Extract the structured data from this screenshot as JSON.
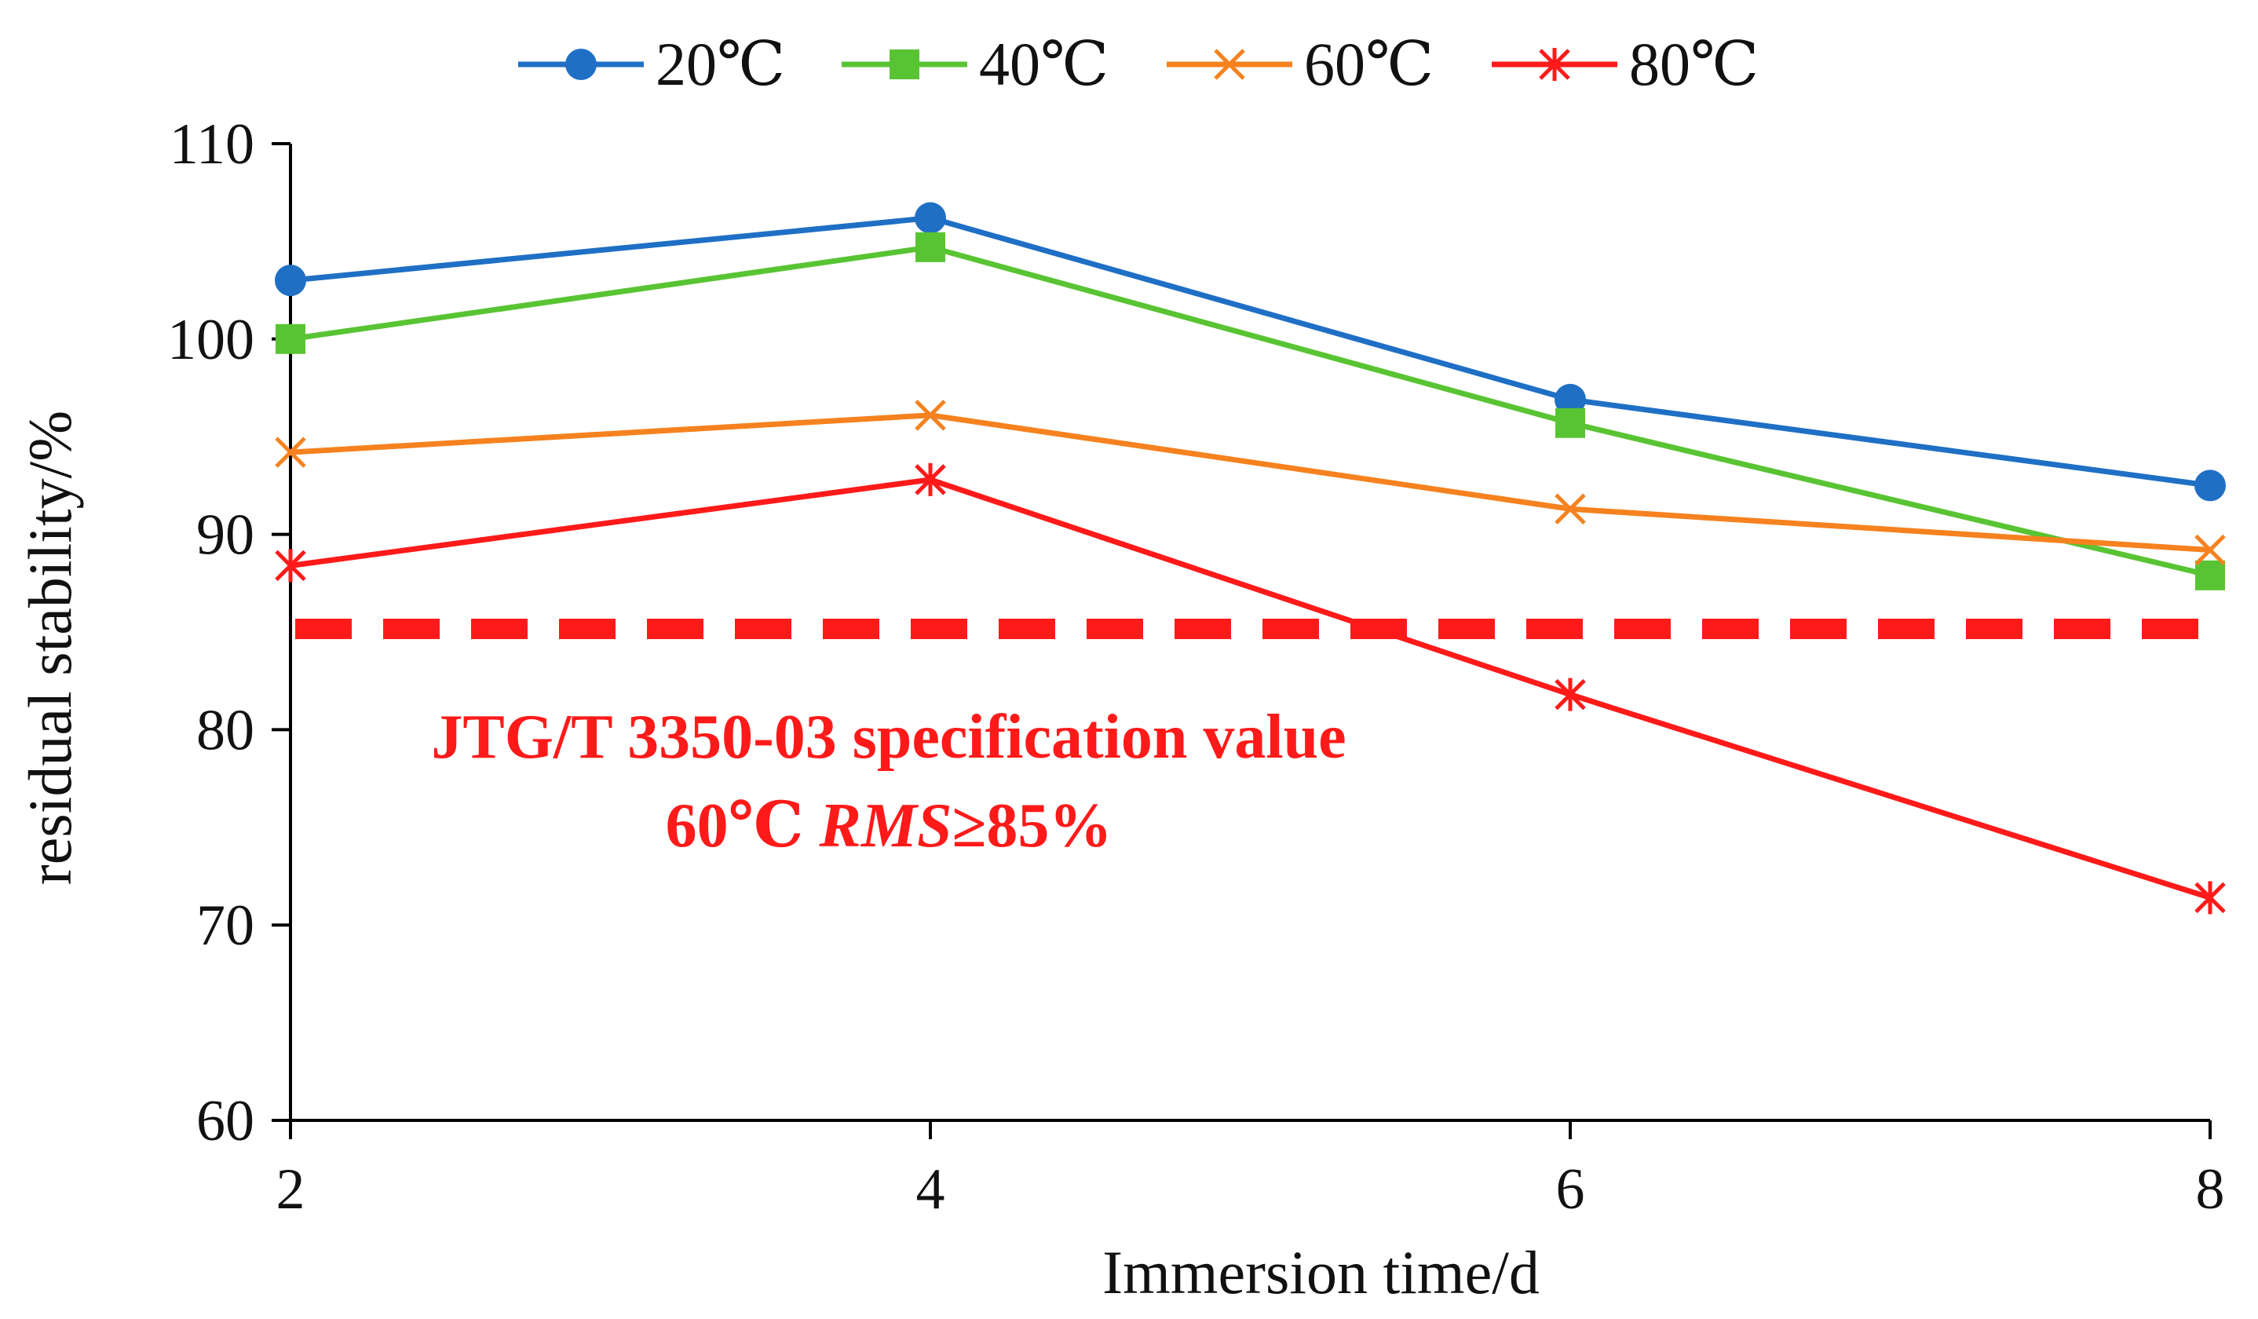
{
  "chart_data": {
    "type": "line",
    "title": "",
    "xlabel": "Immersion time/d",
    "ylabel": "residual stability/%",
    "x": [
      2,
      4,
      6,
      8
    ],
    "xlim": [
      2,
      8
    ],
    "ylim": [
      60,
      110
    ],
    "xticks": [
      "2",
      "4",
      "6",
      "8"
    ],
    "yticks": [
      "60",
      "70",
      "80",
      "90",
      "100",
      "110"
    ],
    "grid": false,
    "legend_position": "top",
    "series": [
      {
        "name": "20℃",
        "values": [
          103.0,
          106.2,
          96.9,
          92.5
        ],
        "color": "#1f6fc5",
        "marker": "circle"
      },
      {
        "name": "40℃",
        "values": [
          100.0,
          104.7,
          95.7,
          87.9
        ],
        "color": "#59c433",
        "marker": "square"
      },
      {
        "name": "60℃",
        "values": [
          94.2,
          96.1,
          91.3,
          89.2
        ],
        "color": "#f5821f",
        "marker": "x"
      },
      {
        "name": "80℃",
        "values": [
          88.4,
          92.8,
          81.8,
          71.4
        ],
        "color": "#ff1a1a",
        "marker": "star"
      }
    ],
    "reference_line": {
      "value": 85,
      "color": "#ff1a1a",
      "style": "dashed"
    },
    "annotation": {
      "line1": "JTG/T 3350-03 specification value",
      "line2_prefix": "60℃ ",
      "line2_italic": "RMS",
      "line2_suffix": "≥85%"
    }
  }
}
